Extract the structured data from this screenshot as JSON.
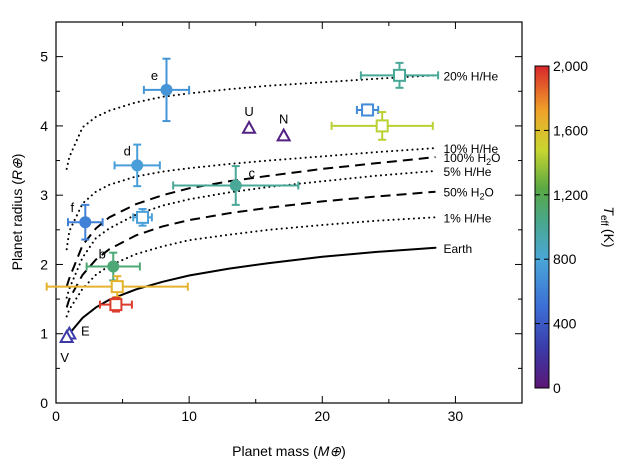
{
  "chart_data": {
    "type": "scatter",
    "xlabel": "Planet mass",
    "xlabel_unit": "M⊕",
    "ylabel": "Planet radius",
    "ylabel_unit": "R⊕",
    "xlim": [
      0,
      35
    ],
    "ylim": [
      0,
      5.5
    ],
    "xticks": [
      0,
      10,
      20,
      30
    ],
    "yticks": [
      0,
      1,
      2,
      3,
      4,
      5
    ],
    "x_tick_labels": [
      "0",
      "10",
      "20",
      "30"
    ],
    "y_tick_labels": [
      "0",
      "1",
      "2",
      "3",
      "4",
      "5"
    ],
    "colorbar": {
      "label_main": "T",
      "label_sub": "eff",
      "label_unit": "(K)",
      "range": [
        0,
        2000
      ],
      "ticks": [
        0,
        400,
        800,
        1200,
        1600,
        2000
      ],
      "tick_labels": [
        "0",
        "400",
        "800",
        "1,200",
        "1,600",
        "2,000"
      ],
      "stops": [
        {
          "t": 0.0,
          "color": "#5b1675"
        },
        {
          "t": 0.12,
          "color": "#3b3aa8"
        },
        {
          "t": 0.25,
          "color": "#3c6ed6"
        },
        {
          "t": 0.4,
          "color": "#4aa7d8"
        },
        {
          "t": 0.52,
          "color": "#49a88a"
        },
        {
          "t": 0.62,
          "color": "#5aa843"
        },
        {
          "t": 0.74,
          "color": "#c9d630"
        },
        {
          "t": 0.86,
          "color": "#f0a32a"
        },
        {
          "t": 1.0,
          "color": "#d8262b"
        }
      ]
    },
    "curves": [
      {
        "label": "20% H/He",
        "style": "dotted",
        "x": [
          0.8,
          1,
          2,
          3,
          4,
          6,
          8,
          10,
          13,
          16,
          20,
          24,
          28.5
        ],
        "y": [
          3.38,
          3.55,
          3.98,
          4.13,
          4.22,
          4.34,
          4.42,
          4.47,
          4.53,
          4.58,
          4.63,
          4.68,
          4.73
        ]
      },
      {
        "label": "10% H/He",
        "style": "dotted",
        "x": [
          0.8,
          1,
          2,
          3,
          4,
          6,
          8,
          10,
          13,
          16,
          20,
          24,
          28.5
        ],
        "y": [
          2.22,
          2.48,
          2.88,
          3.05,
          3.15,
          3.27,
          3.34,
          3.39,
          3.45,
          3.5,
          3.56,
          3.62,
          3.68
        ]
      },
      {
        "label": "100% H₂O",
        "style": "dashed",
        "x": [
          0.8,
          1,
          2,
          3,
          4,
          6,
          8,
          10,
          13,
          16,
          20,
          24,
          28.5
        ],
        "y": [
          1.68,
          1.8,
          2.28,
          2.52,
          2.68,
          2.87,
          3.0,
          3.1,
          3.2,
          3.28,
          3.38,
          3.46,
          3.55
        ]
      },
      {
        "label": "5% H/He",
        "style": "dotted",
        "x": [
          0.8,
          1,
          2,
          3,
          4,
          6,
          8,
          10,
          13,
          16,
          20,
          24,
          28.5
        ],
        "y": [
          1.52,
          1.65,
          2.1,
          2.38,
          2.52,
          2.72,
          2.85,
          2.94,
          3.04,
          3.12,
          3.2,
          3.28,
          3.35
        ]
      },
      {
        "label": "50% H₂O",
        "style": "dashed",
        "x": [
          0.8,
          1,
          2,
          3,
          4,
          6,
          8,
          10,
          13,
          16,
          20,
          24,
          28.5
        ],
        "y": [
          1.38,
          1.5,
          1.85,
          2.07,
          2.22,
          2.42,
          2.55,
          2.64,
          2.74,
          2.82,
          2.91,
          2.98,
          3.05
        ]
      },
      {
        "label": "1% H/He",
        "style": "dotted",
        "x": [
          0.8,
          1,
          2,
          3,
          4,
          6,
          8,
          10,
          13,
          16,
          20,
          24,
          28.5
        ],
        "y": [
          1.25,
          1.35,
          1.65,
          1.85,
          1.98,
          2.15,
          2.26,
          2.35,
          2.43,
          2.5,
          2.57,
          2.63,
          2.68
        ]
      },
      {
        "label": "Earth",
        "style": "solid",
        "x": [
          0.8,
          1,
          2,
          3,
          4,
          6,
          8,
          10,
          13,
          16,
          20,
          24,
          28.5
        ],
        "y": [
          0.94,
          1.0,
          1.23,
          1.38,
          1.49,
          1.64,
          1.75,
          1.84,
          1.94,
          2.02,
          2.11,
          2.18,
          2.24
        ]
      }
    ],
    "points": [
      {
        "label": "e",
        "marker": "circle",
        "x": 8.3,
        "y": 4.52,
        "xerr": 1.7,
        "yerr": 0.45,
        "teff": 700
      },
      {
        "label": "",
        "marker": "square",
        "x": 25.8,
        "y": 4.73,
        "xerr": 2.9,
        "yerr": 0.18,
        "teff": 1000
      },
      {
        "label": "U",
        "marker": "triangle",
        "x": 14.5,
        "y": 3.97,
        "teff": 70
      },
      {
        "label": "N",
        "marker": "triangle",
        "x": 17.1,
        "y": 3.86,
        "teff": 60
      },
      {
        "label": "",
        "marker": "square",
        "x": 23.4,
        "y": 4.23,
        "xerr": 0.8,
        "yerr": 0.08,
        "teff": 650
      },
      {
        "label": "",
        "marker": "square",
        "x": 24.5,
        "y": 4.0,
        "xerr": 3.8,
        "yerr": 0.2,
        "teff": 1450
      },
      {
        "label": "d",
        "marker": "circle",
        "x": 6.1,
        "y": 3.43,
        "xerr": 1.7,
        "yerr": 0.3,
        "teff": 750
      },
      {
        "label": "c",
        "marker": "circle",
        "x": 13.5,
        "y": 3.14,
        "xerr": 4.7,
        "yerr": 0.28,
        "teff": 1000
      },
      {
        "label": "f",
        "marker": "circle",
        "x": 2.2,
        "y": 2.61,
        "xerr": 1.3,
        "yerr": 0.25,
        "teff": 600
      },
      {
        "label": "",
        "marker": "square",
        "x": 6.5,
        "y": 2.68,
        "xerr": 0.7,
        "yerr": 0.12,
        "teff": 750
      },
      {
        "label": "b",
        "marker": "circle",
        "x": 4.3,
        "y": 1.97,
        "xerr": 2.0,
        "yerr": 0.2,
        "teff": 1100
      },
      {
        "label": "",
        "marker": "square",
        "x": 4.6,
        "y": 1.68,
        "xerr": 5.3,
        "yerr": 0.15,
        "teff": 1650
      },
      {
        "label": "",
        "marker": "square",
        "x": 4.5,
        "y": 1.42,
        "xerr": 1.2,
        "yerr": 0.1,
        "teff": 1950
      },
      {
        "label": "E",
        "marker": "triangle",
        "x": 1.0,
        "y": 1.0,
        "teff": 255
      },
      {
        "label": "V",
        "marker": "triangle",
        "x": 0.8,
        "y": 0.95,
        "teff": 230
      }
    ]
  }
}
